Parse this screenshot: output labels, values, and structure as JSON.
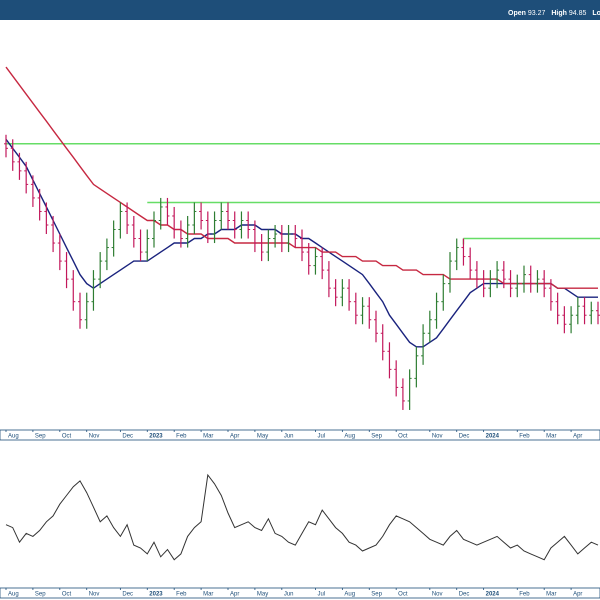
{
  "header": {
    "open_label": "Open",
    "open_value": "93.27",
    "high_label": "High",
    "high_value": "94.85",
    "low_label": "Lo"
  },
  "colors": {
    "header_bg": "#1e4e79",
    "up_bar": "#2e7d32",
    "down_bar": "#c2185b",
    "short_ma": "#1a237e",
    "long_ma": "#c62841",
    "horizontal_level": "#66dd66",
    "oscillator": "#333333",
    "axis_band": "#1e4e79"
  },
  "chart_data": [
    {
      "type": "line",
      "panel": "price",
      "x_axis_labels": [
        {
          "label": "Aug",
          "week": 0
        },
        {
          "label": "Sep",
          "week": 4
        },
        {
          "label": "Oct",
          "week": 8
        },
        {
          "label": "Nov",
          "week": 12
        },
        {
          "label": "Dec",
          "week": 17
        },
        {
          "label": "2023",
          "week": 21,
          "bold": true
        },
        {
          "label": "Feb",
          "week": 25
        },
        {
          "label": "Mar",
          "week": 29
        },
        {
          "label": "Apr",
          "week": 33
        },
        {
          "label": "May",
          "week": 37
        },
        {
          "label": "Jun",
          "week": 41
        },
        {
          "label": "Jul",
          "week": 46
        },
        {
          "label": "Aug",
          "week": 50
        },
        {
          "label": "Sep",
          "week": 54
        },
        {
          "label": "Oct",
          "week": 58
        },
        {
          "label": "Nov",
          "week": 63
        },
        {
          "label": "Dec",
          "week": 67
        },
        {
          "label": "2024",
          "week": 71,
          "bold": true
        },
        {
          "label": "Feb",
          "week": 76
        },
        {
          "label": "Mar",
          "week": 80
        },
        {
          "label": "Apr",
          "week": 84
        }
      ],
      "week_count": 89,
      "ylim": [
        75,
        165
      ],
      "price_bars": [
        {
          "o": 138,
          "c": 137
        },
        {
          "o": 137,
          "c": 134
        },
        {
          "o": 134,
          "c": 132
        },
        {
          "o": 132,
          "c": 129
        },
        {
          "o": 129,
          "c": 126
        },
        {
          "o": 126,
          "c": 123
        },
        {
          "o": 123,
          "c": 120
        },
        {
          "o": 120,
          "c": 116
        },
        {
          "o": 116,
          "c": 112
        },
        {
          "o": 112,
          "c": 108
        },
        {
          "o": 108,
          "c": 103
        },
        {
          "o": 103,
          "c": 99
        },
        {
          "o": 99,
          "c": 103
        },
        {
          "o": 103,
          "c": 108
        },
        {
          "o": 108,
          "c": 112
        },
        {
          "o": 112,
          "c": 115
        },
        {
          "o": 115,
          "c": 119
        },
        {
          "o": 119,
          "c": 123
        },
        {
          "o": 123,
          "c": 120
        },
        {
          "o": 120,
          "c": 117
        },
        {
          "o": 117,
          "c": 114
        },
        {
          "o": 114,
          "c": 117
        },
        {
          "o": 117,
          "c": 121
        },
        {
          "o": 121,
          "c": 124
        },
        {
          "o": 124,
          "c": 122
        },
        {
          "o": 122,
          "c": 119
        },
        {
          "o": 119,
          "c": 117
        },
        {
          "o": 117,
          "c": 120
        },
        {
          "o": 120,
          "c": 123
        },
        {
          "o": 123,
          "c": 121
        },
        {
          "o": 121,
          "c": 118
        },
        {
          "o": 118,
          "c": 121
        },
        {
          "o": 121,
          "c": 123
        },
        {
          "o": 123,
          "c": 121
        },
        {
          "o": 121,
          "c": 119
        },
        {
          "o": 119,
          "c": 121
        },
        {
          "o": 121,
          "c": 119
        },
        {
          "o": 119,
          "c": 116
        },
        {
          "o": 116,
          "c": 114
        },
        {
          "o": 114,
          "c": 117
        },
        {
          "o": 117,
          "c": 118
        },
        {
          "o": 118,
          "c": 116
        },
        {
          "o": 116,
          "c": 118
        },
        {
          "o": 118,
          "c": 117
        },
        {
          "o": 117,
          "c": 114
        },
        {
          "o": 114,
          "c": 111
        },
        {
          "o": 111,
          "c": 113
        },
        {
          "o": 113,
          "c": 110
        },
        {
          "o": 110,
          "c": 106
        },
        {
          "o": 106,
          "c": 104
        },
        {
          "o": 104,
          "c": 106
        },
        {
          "o": 106,
          "c": 103
        },
        {
          "o": 103,
          "c": 100
        },
        {
          "o": 100,
          "c": 102
        },
        {
          "o": 102,
          "c": 99
        },
        {
          "o": 99,
          "c": 96
        },
        {
          "o": 96,
          "c": 92
        },
        {
          "o": 92,
          "c": 88
        },
        {
          "o": 88,
          "c": 84
        },
        {
          "o": 84,
          "c": 81
        },
        {
          "o": 81,
          "c": 86
        },
        {
          "o": 86,
          "c": 91
        },
        {
          "o": 91,
          "c": 96
        },
        {
          "o": 96,
          "c": 99
        },
        {
          "o": 99,
          "c": 103
        },
        {
          "o": 103,
          "c": 107
        },
        {
          "o": 107,
          "c": 112
        },
        {
          "o": 112,
          "c": 115
        },
        {
          "o": 115,
          "c": 113
        },
        {
          "o": 113,
          "c": 110
        },
        {
          "o": 110,
          "c": 108
        },
        {
          "o": 108,
          "c": 106
        },
        {
          "o": 106,
          "c": 108
        },
        {
          "o": 108,
          "c": 110
        },
        {
          "o": 110,
          "c": 108
        },
        {
          "o": 108,
          "c": 106
        },
        {
          "o": 106,
          "c": 107
        },
        {
          "o": 107,
          "c": 109
        },
        {
          "o": 109,
          "c": 107
        },
        {
          "o": 107,
          "c": 108
        },
        {
          "o": 108,
          "c": 106
        },
        {
          "o": 106,
          "c": 103
        },
        {
          "o": 103,
          "c": 100
        },
        {
          "o": 100,
          "c": 98
        },
        {
          "o": 98,
          "c": 100
        },
        {
          "o": 100,
          "c": 102
        },
        {
          "o": 102,
          "c": 100
        },
        {
          "o": 100,
          "c": 101
        },
        {
          "o": 101,
          "c": 100
        }
      ],
      "series": [
        {
          "values": [
            139,
            137,
            135,
            133,
            130,
            127,
            124,
            121,
            118,
            115,
            112,
            109,
            107,
            106,
            107,
            108,
            109,
            110,
            111,
            112,
            112,
            112,
            113,
            114,
            115,
            116,
            116,
            116,
            117,
            117,
            118,
            118,
            119,
            119,
            119,
            120,
            120,
            120,
            119,
            119,
            119,
            118,
            118,
            118,
            117,
            117,
            116,
            115,
            114,
            113,
            112,
            111,
            110,
            109,
            107,
            105,
            103,
            100,
            98,
            96,
            94,
            93,
            93,
            94,
            95,
            97,
            99,
            101,
            103,
            105,
            106,
            107,
            107,
            107,
            107,
            107,
            107,
            107,
            107,
            107,
            107,
            107,
            106,
            106,
            105,
            104,
            104,
            104,
            104
          ]
        },
        {
          "values": [
            155,
            153,
            151,
            149,
            147,
            145,
            143,
            141,
            139,
            137,
            135,
            133,
            131,
            129,
            128,
            127,
            126,
            125,
            124,
            123,
            122,
            121,
            121,
            120,
            120,
            119,
            119,
            118,
            118,
            118,
            117,
            117,
            117,
            117,
            116,
            116,
            116,
            116,
            116,
            116,
            116,
            116,
            116,
            115,
            115,
            115,
            115,
            114,
            114,
            114,
            113,
            113,
            113,
            112,
            112,
            112,
            111,
            111,
            111,
            110,
            110,
            110,
            109,
            109,
            109,
            109,
            108,
            108,
            108,
            108,
            108,
            108,
            108,
            108,
            107,
            107,
            107,
            107,
            107,
            107,
            107,
            107,
            106,
            106,
            106,
            106,
            106,
            106,
            106
          ]
        }
      ],
      "levels": [
        {
          "value": 138,
          "from_week": 0
        },
        {
          "value": 125,
          "from_week": 21
        },
        {
          "value": 117,
          "from_week": 68
        }
      ]
    },
    {
      "type": "line",
      "panel": "oscillator",
      "ylim": [
        0,
        100
      ],
      "values": [
        42,
        40,
        30,
        36,
        34,
        38,
        44,
        48,
        56,
        62,
        68,
        72,
        64,
        54,
        44,
        48,
        40,
        34,
        42,
        28,
        26,
        22,
        30,
        20,
        25,
        18,
        22,
        34,
        40,
        44,
        76,
        70,
        62,
        50,
        40,
        42,
        44,
        40,
        38,
        46,
        36,
        34,
        30,
        28,
        36,
        44,
        42,
        52,
        46,
        40,
        36,
        30,
        28,
        24,
        26,
        28,
        34,
        42,
        48,
        46,
        44,
        40,
        36,
        32,
        30,
        28,
        34,
        38,
        32,
        30,
        28,
        30,
        32,
        34,
        30,
        26,
        28,
        24,
        22,
        20,
        18,
        26,
        30,
        34,
        28,
        22,
        26,
        30,
        28
      ]
    }
  ]
}
